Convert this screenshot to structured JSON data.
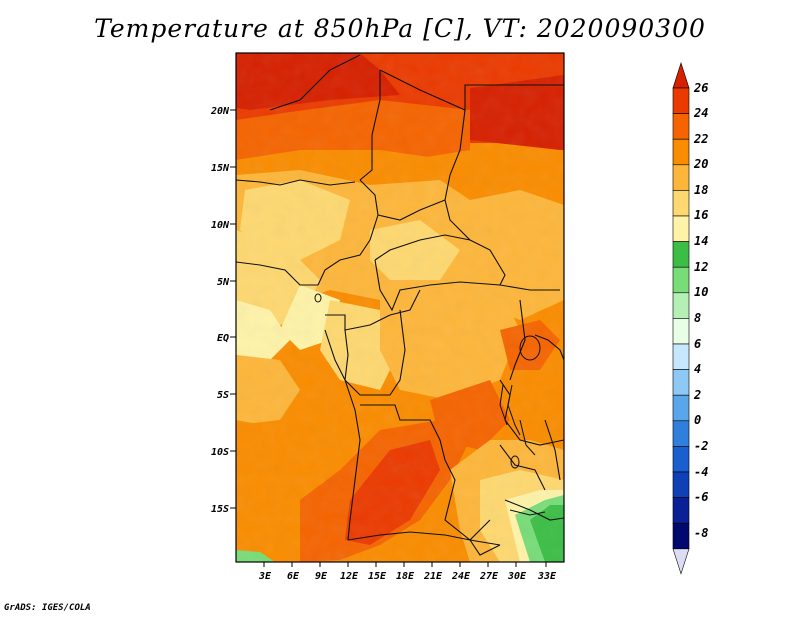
{
  "title": "Temperature at 850hPa [C], VT: 2020090300",
  "credit": "GrADS: IGES/COLA",
  "map": {
    "lat_labels": [
      "20N",
      "15N",
      "10N",
      "5N",
      "EQ",
      "5S",
      "10S",
      "15S"
    ],
    "lon_labels": [
      "3E",
      "6E",
      "9E",
      "12E",
      "15E",
      "18E",
      "21E",
      "24E",
      "27E",
      "30E",
      "33E"
    ]
  },
  "colorbar": {
    "labels": [
      "26",
      "24",
      "22",
      "20",
      "18",
      "16",
      "14",
      "12",
      "10",
      "8",
      "6",
      "4",
      "2",
      "0",
      "-2",
      "-4",
      "-6",
      "-8"
    ],
    "colors": [
      "#d62000",
      "#eb3a00",
      "#f56400",
      "#fa8c00",
      "#fdb63a",
      "#fed870",
      "#fff3a8",
      "#3cbe46",
      "#78dc78",
      "#b4f0b4",
      "#e6ffe6",
      "#c6e8ff",
      "#8ec8f5",
      "#5aa6ea",
      "#2f7fdc",
      "#1a5fd0",
      "#1040b8",
      "#0a2096",
      "#000a6e",
      "#dcdcf5"
    ]
  }
}
